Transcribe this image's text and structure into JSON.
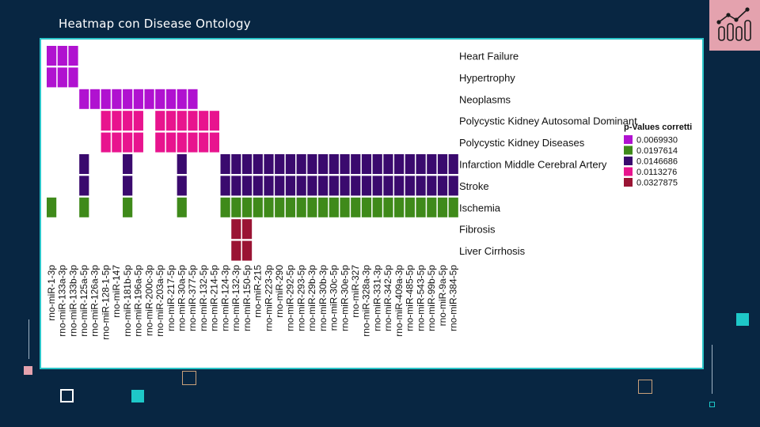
{
  "slide": {
    "title": "Heatmap con Disease Ontology"
  },
  "colors": {
    "background": "#082642",
    "panel_border": "#2ac4c8",
    "badge": "#e4a2ae",
    "accent_teal": "#1ec8c8",
    "accent_pink": "#e4a2ae",
    "accent_tan": "#c9a07a"
  },
  "icons": {
    "badge_icon": "bar-chart-trend-icon"
  },
  "chart_data": {
    "type": "heatmap",
    "title": "",
    "rows": [
      "Heart Failure",
      "Hypertrophy",
      "Neoplasms",
      "Polycystic Kidney Autosomal Dominant",
      "Polycystic Kidney Diseases",
      "Infarction Middle Cerebral Artery",
      "Stroke",
      "Ischemia",
      "Fibrosis",
      "Liver Cirrhosis"
    ],
    "columns": [
      "rno-miR-1-3p",
      "rno-miR-133a-3p",
      "rno-miR-133b-3p",
      "rno-miR-125a-5p",
      "rno-miR-126a-3p",
      "rno-miR-128-1-5p",
      "rno-miR-147",
      "rno-miR-181b-5p",
      "rno-miR-196a-5p",
      "rno-miR-200c-3p",
      "rno-miR-203a-5p",
      "rno-miR-217-5p",
      "rno-miR-30a-5p",
      "rno-miR-377-5p",
      "rno-miR-132-5p",
      "rno-miR-214-5p",
      "rno-miR-124-3p",
      "rno-miR-132-3p",
      "rno-miR-150-5p",
      "rno-miR-215",
      "rno-miR-223-3p",
      "rno-miR-290",
      "rno-miR-292-5p",
      "rno-miR-293-5p",
      "rno-miR-29b-3p",
      "rno-miR-30b-3p",
      "rno-miR-30c-5p",
      "rno-miR-30e-5p",
      "rno-miR-327",
      "rno-miR-328a-3p",
      "rno-miR-331-3p",
      "rno-miR-342-5p",
      "rno-miR-409a-3p",
      "rno-miR-485-5p",
      "rno-miR-543-5p",
      "rno-miR-99b-5p",
      "rno-miR-9a-5p",
      "rno-miR-384-5p"
    ],
    "row_values": [
      0.006993,
      0.006993,
      0.006993,
      0.0113276,
      0.0113276,
      0.0146686,
      0.0146686,
      0.0197614,
      0.0327875,
      0.0327875
    ],
    "cells": [
      [
        0,
        1,
        2
      ],
      [
        0,
        1,
        2
      ],
      [
        3,
        4,
        5,
        6,
        7,
        8,
        9,
        10,
        11,
        12,
        13
      ],
      [
        5,
        6,
        7,
        8,
        10,
        11,
        12,
        13,
        14,
        15
      ],
      [
        5,
        6,
        7,
        8,
        10,
        11,
        12,
        13,
        14,
        15
      ],
      [
        3,
        7,
        12,
        16,
        17,
        18,
        19,
        20,
        21,
        22,
        23,
        24,
        25,
        26,
        27,
        28,
        29,
        30,
        31,
        32,
        33,
        34,
        35,
        36,
        37
      ],
      [
        3,
        7,
        12,
        16,
        17,
        18,
        19,
        20,
        21,
        22,
        23,
        24,
        25,
        26,
        27,
        28,
        29,
        30,
        31,
        32,
        33,
        34,
        35,
        36,
        37
      ],
      [
        0,
        3,
        7,
        12,
        16,
        17,
        18,
        19,
        20,
        21,
        22,
        23,
        24,
        25,
        26,
        27,
        28,
        29,
        30,
        31,
        32,
        33,
        34,
        35,
        36,
        37
      ],
      [
        17,
        18
      ],
      [
        17,
        18
      ]
    ],
    "legend": {
      "title": "p-Values corretti",
      "position": "right",
      "entries": [
        {
          "label": "0.0069930",
          "color": "#b012d0"
        },
        {
          "label": "0.0197614",
          "color": "#3f8a1a"
        },
        {
          "label": "0.0146686",
          "color": "#3a0a6e"
        },
        {
          "label": "0.0113276",
          "color": "#e8148e"
        },
        {
          "label": "0.0327875",
          "color": "#9a1434"
        }
      ]
    },
    "value_colors": {
      "0.006993": "#b012d0",
      "0.0197614": "#3f8a1a",
      "0.0146686": "#3a0a6e",
      "0.0113276": "#e8148e",
      "0.0327875": "#9a1434"
    }
  }
}
